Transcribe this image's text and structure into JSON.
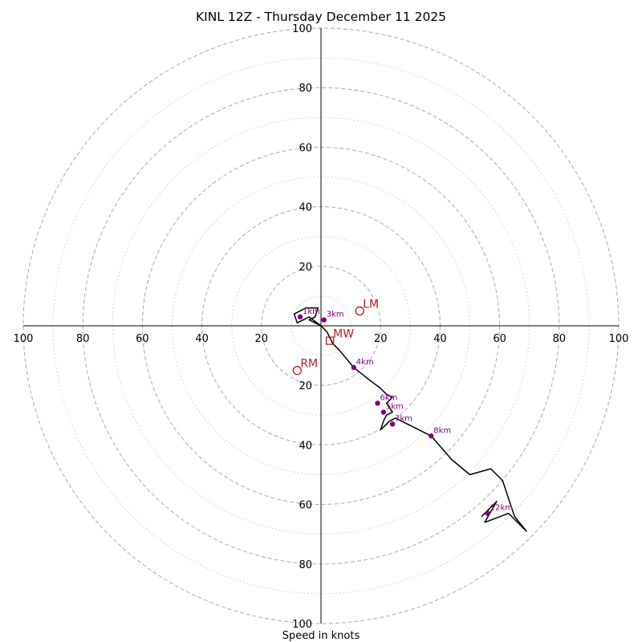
{
  "chart_data": {
    "type": "scatter",
    "title": "KINL 12Z - Thursday December 11 2025",
    "xlabel": "Speed in knots",
    "ylabel": "",
    "axis_range": [
      -100,
      100
    ],
    "ring_major": [
      20,
      40,
      60,
      80,
      100
    ],
    "ring_minor": [
      10,
      30,
      50,
      70,
      90
    ],
    "x_tick_labels": [
      "100",
      "80",
      "60",
      "40",
      "20",
      "20",
      "40",
      "60",
      "80",
      "100"
    ],
    "y_tick_labels": [
      "100",
      "80",
      "60",
      "40",
      "20",
      "20",
      "40",
      "60",
      "80",
      "100"
    ],
    "grid": true,
    "legend": "none",
    "colors": {
      "hodograph": "#000000",
      "height_marker": "#800080",
      "storm_motion": "#b22222",
      "grid": "#b0b0b0"
    },
    "hodograph_trace": [
      [
        0,
        0
      ],
      [
        -4,
        3
      ],
      [
        -8,
        1
      ],
      [
        -9,
        4
      ],
      [
        -5,
        6
      ],
      [
        -1,
        6
      ],
      [
        -2,
        3
      ],
      [
        -4,
        2
      ],
      [
        -2,
        1
      ],
      [
        0,
        0
      ],
      [
        2,
        -2
      ],
      [
        4,
        -6
      ],
      [
        6,
        -8
      ],
      [
        11,
        -14
      ],
      [
        16,
        -18
      ],
      [
        20,
        -21
      ],
      [
        22,
        -23
      ],
      [
        24,
        -24
      ],
      [
        22,
        -26
      ],
      [
        24,
        -29
      ],
      [
        22,
        -30
      ],
      [
        21,
        -32
      ],
      [
        20,
        -35
      ],
      [
        22,
        -33
      ],
      [
        23,
        -32
      ],
      [
        25,
        -31
      ],
      [
        31,
        -34
      ],
      [
        37,
        -37
      ],
      [
        44,
        -45
      ],
      [
        50,
        -50
      ],
      [
        57,
        -48
      ],
      [
        61,
        -52
      ],
      [
        63,
        -58
      ],
      [
        65,
        -64
      ],
      [
        69,
        -69
      ],
      [
        63,
        -63
      ],
      [
        55,
        -66
      ],
      [
        59,
        -59
      ],
      [
        54,
        -64
      ],
      [
        57,
        -61
      ]
    ],
    "height_markers": [
      {
        "label": "1km",
        "x": -7,
        "y": 3
      },
      {
        "label": "3km",
        "x": 1,
        "y": 2
      },
      {
        "label": "4km",
        "x": 11,
        "y": -14
      },
      {
        "label": "5km",
        "x": 21,
        "y": -29
      },
      {
        "label": "6km",
        "x": 19,
        "y": -26
      },
      {
        "label": "7km",
        "x": 24,
        "y": -33
      },
      {
        "label": "8km",
        "x": 37,
        "y": -37
      },
      {
        "label": "12km",
        "x": 56,
        "y": -63
      }
    ],
    "storm_motion": [
      {
        "label": "LM",
        "x": 13,
        "y": 5,
        "shape": "circle"
      },
      {
        "label": "RM",
        "x": -8,
        "y": -15,
        "shape": "circle"
      },
      {
        "label": "MW",
        "x": 3,
        "y": -5,
        "shape": "square"
      }
    ]
  }
}
